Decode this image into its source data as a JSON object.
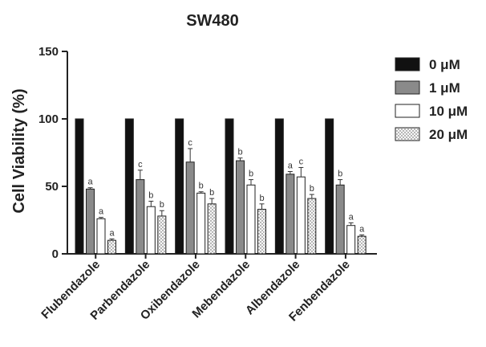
{
  "chart_data": {
    "type": "bar",
    "title": "SW480",
    "xlabel": "",
    "ylabel": "Cell Viability (%)",
    "ylim": [
      0,
      150
    ],
    "yticks": [
      "0",
      "50",
      "100",
      "150"
    ],
    "grid": false,
    "legend_position": "right",
    "categories": [
      "Flubendazole",
      "Parbendazole",
      "Oxibendazole",
      "Mebendazole",
      "Albendazole",
      "Fenbendazole"
    ],
    "series": [
      {
        "name": "0 μM",
        "fill": "#111111",
        "pattern": "solid",
        "values": [
          100,
          100,
          100,
          100,
          100,
          100
        ],
        "errors": [
          0,
          0,
          0,
          0,
          0,
          0
        ],
        "labels": [
          "",
          "",
          "",
          "",
          "",
          ""
        ]
      },
      {
        "name": "1 μM",
        "fill": "#8a8a8a",
        "pattern": "solid",
        "values": [
          48,
          55,
          68,
          69,
          59,
          51
        ],
        "errors": [
          1,
          7,
          10,
          2,
          2,
          4
        ],
        "labels": [
          "a",
          "c",
          "c",
          "b",
          "a",
          "b"
        ]
      },
      {
        "name": "10 μM",
        "fill": "#ffffff",
        "pattern": "solid",
        "values": [
          26,
          35,
          45,
          51,
          57,
          21
        ],
        "errors": [
          1,
          4,
          1,
          4,
          7,
          2
        ],
        "labels": [
          "a",
          "b",
          "b",
          "b",
          "c",
          "a"
        ]
      },
      {
        "name": "20 μM",
        "fill": "#f4f4f4",
        "pattern": "dots",
        "values": [
          10,
          28,
          37,
          33,
          41,
          13
        ],
        "errors": [
          1,
          4,
          4,
          4,
          3,
          1
        ],
        "labels": [
          "a",
          "b",
          "b",
          "b",
          "b",
          "a"
        ]
      }
    ]
  }
}
